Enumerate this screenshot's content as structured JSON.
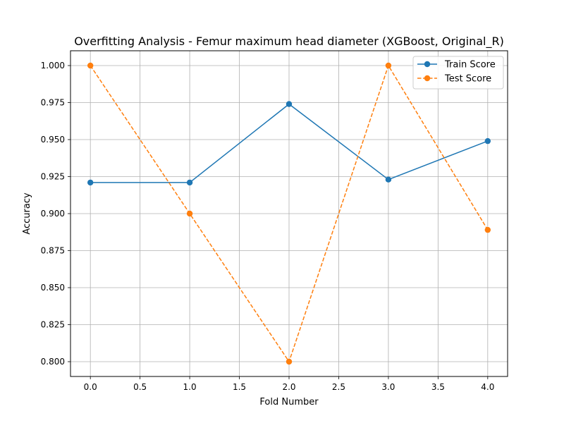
{
  "chart_data": {
    "type": "line",
    "title": "Overfitting Analysis - Femur maximum head diameter (XGBoost, Original_R)",
    "xlabel": "Fold Number",
    "ylabel": "Accuracy",
    "x": [
      0,
      1,
      2,
      3,
      4
    ],
    "xlim": [
      -0.2,
      4.2
    ],
    "ylim": [
      0.79,
      1.01
    ],
    "xticks": [
      0.0,
      0.5,
      1.0,
      1.5,
      2.0,
      2.5,
      3.0,
      3.5,
      4.0
    ],
    "yticks": [
      0.8,
      0.825,
      0.85,
      0.875,
      0.9,
      0.925,
      0.95,
      0.975,
      1.0
    ],
    "xtick_labels": [
      "0.0",
      "0.5",
      "1.0",
      "1.5",
      "2.0",
      "2.5",
      "3.0",
      "3.5",
      "4.0"
    ],
    "ytick_labels": [
      "0.800",
      "0.825",
      "0.850",
      "0.875",
      "0.900",
      "0.925",
      "0.950",
      "0.975",
      "1.000"
    ],
    "grid": true,
    "legend_position": "top-right",
    "series": [
      {
        "name": "Train Score",
        "values": [
          0.921,
          0.921,
          0.974,
          0.923,
          0.949
        ],
        "color": "#1f77b4",
        "line_style": "solid",
        "marker": "circle"
      },
      {
        "name": "Test Score",
        "values": [
          1.0,
          0.9,
          0.8,
          1.0,
          0.889
        ],
        "color": "#ff7f0e",
        "line_style": "dashed",
        "marker": "circle"
      }
    ]
  }
}
